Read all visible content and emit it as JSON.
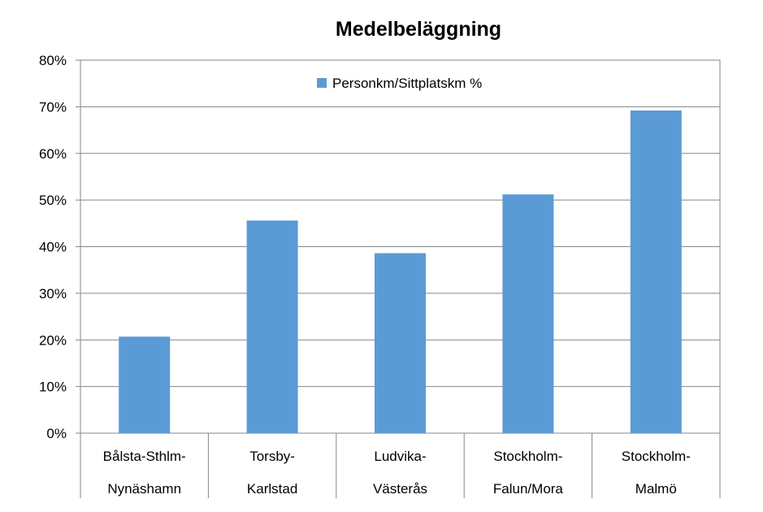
{
  "chart_data": {
    "type": "bar",
    "title": "Medelbeläggning",
    "xlabel": "",
    "ylabel": "",
    "ylim": [
      0,
      0.8
    ],
    "yticks": [
      "0%",
      "10%",
      "20%",
      "30%",
      "40%",
      "50%",
      "60%",
      "70%",
      "80%"
    ],
    "grid": true,
    "legend_position": "top",
    "categories": [
      [
        "Bålsta-Sthlm-",
        "Nynäshamn"
      ],
      [
        "Torsby-",
        "Karlstad"
      ],
      [
        "Ludvika-",
        "Västerås"
      ],
      [
        "Stockholm-",
        "Falun/Mora"
      ],
      [
        "Stockholm-",
        "Malmö"
      ]
    ],
    "series": [
      {
        "name": "Personkm/Sittplatskm %",
        "color": "#5b9bd5",
        "values": [
          0.207,
          0.456,
          0.386,
          0.512,
          0.692
        ]
      }
    ]
  }
}
